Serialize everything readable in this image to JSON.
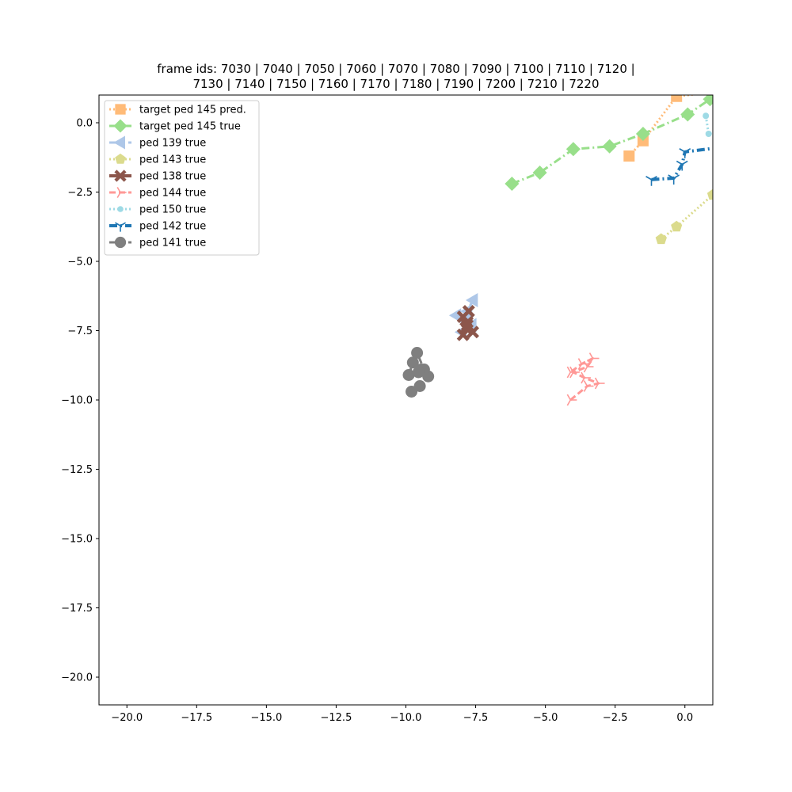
{
  "chart_data": {
    "type": "line",
    "title_lines": [
      "frame ids: 7030 | 7040 | 7050 | 7060 | 7070 | 7080 | 7090 | 7100 | 7110 | 7120 |",
      "7130 | 7140 | 7150 | 7160 | 7170 | 7180 | 7190 | 7200 | 7210 | 7220"
    ],
    "xlabel": "",
    "ylabel": "",
    "xlim": [
      -21.0,
      1.0
    ],
    "ylim": [
      -21.0,
      1.0
    ],
    "x_ticks": [
      -20.0,
      -17.5,
      -15.0,
      -12.5,
      -10.0,
      -7.5,
      -5.0,
      -2.5,
      0.0
    ],
    "x_tick_labels": [
      "−20.0",
      "−17.5",
      "−15.0",
      "−12.5",
      "−10.0",
      "−7.5",
      "−5.0",
      "−2.5",
      "0.0"
    ],
    "y_ticks": [
      0.0,
      -2.5,
      -5.0,
      -7.5,
      -10.0,
      -12.5,
      -15.0,
      -17.5,
      -20.0
    ],
    "y_tick_labels": [
      "0.0",
      "−2.5",
      "−5.0",
      "−7.5",
      "−10.0",
      "−12.5",
      "−15.0",
      "−17.5",
      "−20.0"
    ],
    "grid": false,
    "legend_position": "top-left",
    "series": [
      {
        "name": "target ped 145 pred.",
        "color": "#ffbb78",
        "marker": "square",
        "dash": "dotted",
        "width": 3,
        "x": [
          -2.0,
          -1.5,
          -0.3,
          2.5
        ],
        "y": [
          -1.2,
          -0.65,
          0.95,
          1.3
        ]
      },
      {
        "name": "target ped 145 true",
        "color": "#98df8a",
        "marker": "diamond",
        "dash": "dashdot",
        "width": 3,
        "x": [
          -6.2,
          -5.2,
          -4.0,
          -2.7,
          -1.5,
          0.1,
          0.9
        ],
        "y": [
          -2.2,
          -1.8,
          -0.95,
          -0.85,
          -0.4,
          0.3,
          0.85
        ]
      },
      {
        "name": "ped 139 true",
        "color": "#aec7e8",
        "marker": "triangle-left",
        "dash": "dashed",
        "width": 3,
        "x": [
          -7.6,
          -7.8,
          -7.9,
          -8.2,
          -7.65,
          -8.0,
          -7.8
        ],
        "y": [
          -6.4,
          -6.8,
          -7.1,
          -6.95,
          -7.3,
          -7.55,
          -7.2
        ]
      },
      {
        "name": "ped 143 true",
        "color": "#dbdb8d",
        "marker": "pentagon",
        "dash": "dotted",
        "width": 3,
        "x": [
          -0.85,
          -0.3,
          1.0,
          1.8
        ],
        "y": [
          -4.2,
          -3.75,
          -2.6,
          -1.8
        ]
      },
      {
        "name": "ped 138 true",
        "color": "#8c564b",
        "marker": "x-filled",
        "dash": "solid",
        "width": 4,
        "x": [
          -7.75,
          -7.95,
          -7.8,
          -7.6,
          -7.85,
          -7.95,
          -7.8
        ],
        "y": [
          -6.8,
          -7.0,
          -7.2,
          -7.55,
          -7.4,
          -7.65,
          -7.3
        ]
      },
      {
        "name": "ped 144 true",
        "color": "#ff9896",
        "marker": "tri-right",
        "dash": "dashed",
        "width": 3,
        "x": [
          -4.1,
          -3.5,
          -3.1,
          -3.6,
          -4.0,
          -3.5,
          -3.3,
          -3.7,
          -4.1
        ],
        "y": [
          -10.0,
          -9.5,
          -9.4,
          -9.2,
          -9.0,
          -8.8,
          -8.5,
          -8.7,
          -9.0
        ]
      },
      {
        "name": "ped 150 true",
        "color": "#9edae5",
        "marker": "circle-small",
        "dash": "dotted",
        "width": 3,
        "x": [
          0.75,
          0.85,
          1.5
        ],
        "y": [
          0.25,
          -0.4,
          -0.2
        ]
      },
      {
        "name": "ped 142 true",
        "color": "#1f77b4",
        "marker": "tri-down",
        "dash": "dashdot",
        "width": 4,
        "x": [
          -1.2,
          -0.4,
          -0.1,
          0.0,
          1.2
        ],
        "y": [
          -2.05,
          -2.0,
          -1.5,
          -1.05,
          -0.9
        ]
      },
      {
        "name": "ped 141 true",
        "color": "#7f7f7f",
        "marker": "circle",
        "dash": "dashed",
        "width": 3,
        "x": [
          -9.8,
          -9.5,
          -9.2,
          -9.45,
          -9.75,
          -9.9,
          -9.6,
          -9.35,
          -9.55
        ],
        "y": [
          -9.7,
          -9.5,
          -9.15,
          -8.9,
          -8.65,
          -9.1,
          -8.3,
          -8.9,
          -9.0
        ]
      }
    ]
  }
}
